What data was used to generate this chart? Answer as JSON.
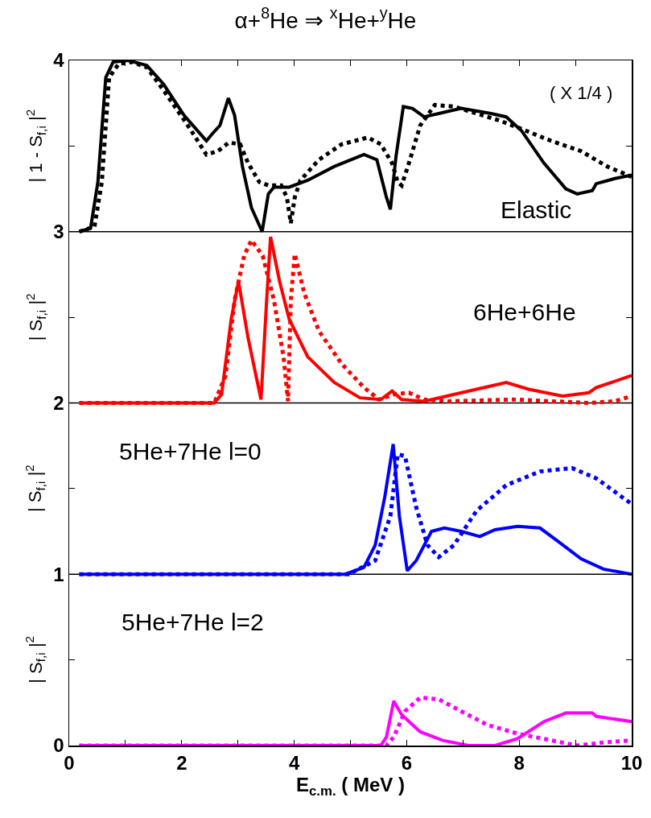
{
  "chart_data": {
    "type": "line",
    "title": "α+$^{8}$He ⇒ $^{x}$He+$^{y}$He",
    "xlabel": "E$_{c.m.}$ ( MeV )",
    "annotations": [
      "| 1 - S$_{f,i}$ |$^{2}$",
      "| S$_{f,i}$ |$^{2}$",
      "| S$_{f,i}$ |$^{2}$",
      "| S$_{f,i}$ |$^{2}$",
      "( X 1/4 )",
      "Elastic",
      "6He+6He",
      "5He+7He l=0",
      "5He+7He l=2"
    ],
    "xlim": [
      0,
      10
    ],
    "xticks": [
      0,
      {
        "value": 1,
        "label": null
      },
      2,
      {
        "value": 3,
        "label": null
      },
      4,
      {
        "value": 5,
        "label": null
      },
      6,
      {
        "value": 7,
        "label": null
      },
      8,
      {
        "value": 9,
        "label": null
      },
      10
    ],
    "ylim": [
      0,
      4
    ],
    "yticks": [
      0,
      {
        "value": 0.5,
        "label": null
      },
      1,
      {
        "value": 1.5,
        "label": null
      },
      2,
      {
        "value": 2.5,
        "label": null
      },
      3,
      {
        "value": 3.5,
        "label": null
      },
      4
    ],
    "grid": false,
    "marker": "none",
    "ref_lines": [
      {
        "axis": "y",
        "value": 1,
        "color": "#000000"
      },
      {
        "axis": "y",
        "value": 2,
        "color": "#000000"
      },
      {
        "axis": "y",
        "value": 3,
        "color": "#000000"
      }
    ],
    "series": [
      {
        "color": "#000000",
        "line_style": "solid",
        "x": [
          0.18,
          0.38,
          0.51,
          0.65,
          0.78,
          1.05,
          1.38,
          1.68,
          2.04,
          2.44,
          2.54,
          2.68,
          2.83,
          2.94,
          3.08,
          3.24,
          3.43,
          3.54,
          3.64,
          3.91,
          4.24,
          4.71,
          5.24,
          5.47,
          5.64,
          5.71,
          5.81,
          5.94,
          6.1,
          6.31,
          6.57,
          6.97,
          7.5,
          7.77,
          8.04,
          8.44,
          8.83,
          9.03,
          9.3,
          9.37,
          9.7,
          10
        ],
        "values": [
          3.0,
          3.02,
          3.29,
          3.9,
          3.99,
          4.0,
          3.97,
          3.86,
          3.68,
          3.53,
          3.57,
          3.62,
          3.78,
          3.68,
          3.38,
          3.14,
          3.0,
          3.22,
          3.26,
          3.26,
          3.3,
          3.38,
          3.45,
          3.42,
          3.2,
          3.13,
          3.44,
          3.73,
          3.72,
          3.67,
          3.69,
          3.72,
          3.69,
          3.67,
          3.59,
          3.4,
          3.25,
          3.22,
          3.24,
          3.28,
          3.31,
          3.33
        ]
      },
      {
        "color": "#000000",
        "line_style": "dashed",
        "x": [
          0.18,
          0.45,
          0.58,
          0.71,
          0.88,
          1.11,
          1.38,
          1.71,
          2.11,
          2.44,
          2.64,
          2.84,
          3.04,
          3.18,
          3.38,
          3.54,
          3.77,
          3.87,
          3.94,
          4.01,
          4.11,
          4.44,
          4.84,
          5.31,
          5.54,
          5.74,
          5.84,
          5.91,
          6.04,
          6.24,
          6.5,
          6.84,
          7.24,
          7.64,
          8.04,
          8.57,
          9.1,
          9.57,
          10
        ],
        "values": [
          3.0,
          3.03,
          3.29,
          3.9,
          3.98,
          3.99,
          3.96,
          3.81,
          3.62,
          3.45,
          3.47,
          3.52,
          3.51,
          3.4,
          3.29,
          3.27,
          3.27,
          3.2,
          3.05,
          3.2,
          3.3,
          3.42,
          3.51,
          3.55,
          3.51,
          3.4,
          3.29,
          3.27,
          3.4,
          3.62,
          3.74,
          3.73,
          3.69,
          3.65,
          3.6,
          3.53,
          3.47,
          3.38,
          3.32
        ]
      },
      {
        "color": "#ff0000",
        "line_style": "solid",
        "x": [
          0.18,
          2.58,
          2.71,
          2.88,
          3.01,
          3.18,
          3.41,
          3.51,
          3.58,
          3.74,
          3.91,
          4.24,
          4.71,
          5.17,
          5.54,
          5.74,
          5.91,
          6.31,
          6.71,
          7.24,
          7.77,
          8.17,
          8.77,
          9.24,
          9.37,
          10
        ],
        "values": [
          2.0,
          2.0,
          2.05,
          2.49,
          2.71,
          2.38,
          2.02,
          2.6,
          2.97,
          2.71,
          2.49,
          2.27,
          2.12,
          2.03,
          2.02,
          2.07,
          2.02,
          2.01,
          2.04,
          2.08,
          2.12,
          2.08,
          2.04,
          2.06,
          2.09,
          2.16
        ]
      },
      {
        "color": "#ff0000",
        "line_style": "dashed",
        "x": [
          0.18,
          2.58,
          2.78,
          2.94,
          3.11,
          3.24,
          3.44,
          3.64,
          3.81,
          3.89,
          3.94,
          4.01,
          4.18,
          4.44,
          4.84,
          5.24,
          5.51,
          5.77,
          6.04,
          6.31,
          6.77,
          7.9,
          9.24,
          9.7,
          10
        ],
        "values": [
          2.0,
          2.0,
          2.16,
          2.6,
          2.86,
          2.95,
          2.86,
          2.6,
          2.27,
          2.01,
          2.6,
          2.87,
          2.64,
          2.42,
          2.23,
          2.09,
          2.02,
          2.05,
          2.06,
          2.02,
          2.01,
          2.02,
          2.0,
          2.01,
          2.04
        ]
      },
      {
        "color": "#0000ff",
        "line_style": "solid",
        "x": [
          0.18,
          4.91,
          5.24,
          5.44,
          5.61,
          5.76,
          5.87,
          6.01,
          6.17,
          6.44,
          6.67,
          6.97,
          7.3,
          7.57,
          7.97,
          8.37,
          8.7,
          9.1,
          9.5,
          10
        ],
        "values": [
          1.0,
          1.0,
          1.04,
          1.17,
          1.45,
          1.76,
          1.34,
          1.02,
          1.08,
          1.25,
          1.27,
          1.25,
          1.22,
          1.26,
          1.28,
          1.27,
          1.19,
          1.09,
          1.03,
          1.0
        ]
      },
      {
        "color": "#0000ff",
        "line_style": "dashed",
        "x": [
          0.18,
          4.97,
          5.44,
          5.71,
          5.84,
          5.97,
          6.17,
          6.37,
          6.57,
          6.84,
          7.24,
          7.77,
          8.37,
          8.94,
          9.37,
          10
        ],
        "values": [
          1.0,
          1.0,
          1.08,
          1.34,
          1.7,
          1.69,
          1.39,
          1.17,
          1.1,
          1.17,
          1.37,
          1.52,
          1.6,
          1.62,
          1.56,
          1.41
        ]
      },
      {
        "color": "#ff00ff",
        "line_style": "solid",
        "x": [
          0.18,
          5.54,
          5.64,
          5.77,
          5.91,
          6.24,
          6.64,
          7.1,
          7.57,
          7.97,
          8.44,
          8.83,
          9.3,
          9.37,
          10
        ],
        "values": [
          0,
          0,
          0.05,
          0.26,
          0.18,
          0.08,
          0.03,
          0,
          0,
          0.04,
          0.14,
          0.19,
          0.19,
          0.17,
          0.14
        ]
      },
      {
        "color": "#ff00ff",
        "line_style": "dashed",
        "x": [
          0.18,
          5.64,
          5.77,
          5.97,
          6.24,
          6.57,
          6.97,
          7.44,
          7.97,
          8.57,
          9.03,
          9.57,
          10
        ],
        "values": [
          0,
          0,
          0.05,
          0.2,
          0.28,
          0.27,
          0.2,
          0.12,
          0.07,
          0.03,
          0,
          0.02,
          0.03
        ]
      }
    ]
  }
}
